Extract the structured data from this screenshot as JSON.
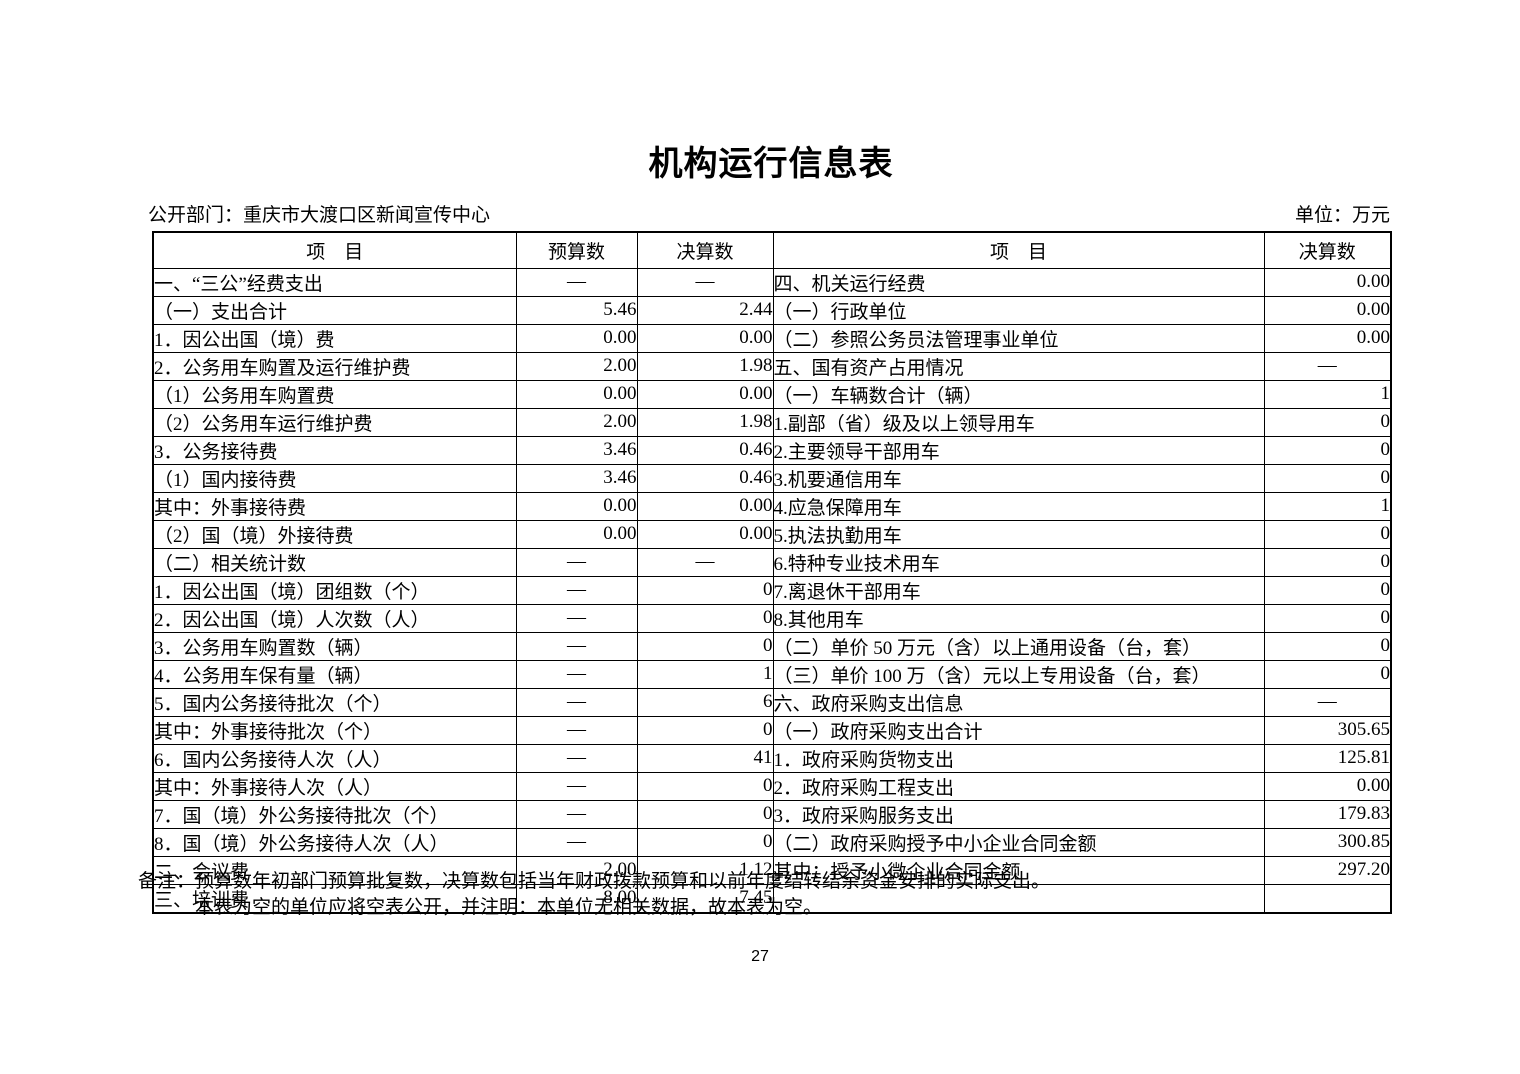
{
  "page": {
    "title": "机构运行信息表",
    "department_label": "公开部门：重庆市大渡口区新闻宣传中心",
    "unit_label": "单位：万元",
    "page_number": "27"
  },
  "table": {
    "headers": {
      "item_left": "项　目",
      "budget": "预算数",
      "final_left": "决算数",
      "item_right": "项　目",
      "final_right": "决算数"
    },
    "rows": [
      {
        "l": "一、“三公”经费支出",
        "li": 0,
        "b": "—",
        "f": "—",
        "r": "四、机关运行经费",
        "ri": 1,
        "v": "0.00"
      },
      {
        "l": "（一）支出合计",
        "li": 1,
        "b": "5.46",
        "f": "2.44",
        "r": "（一）行政单位",
        "ri": 1,
        "v": "0.00"
      },
      {
        "l": "1．因公出国（境）费",
        "li": 2,
        "b": "0.00",
        "f": "0.00",
        "r": "（二）参照公务员法管理事业单位",
        "ri": 1,
        "v": "0.00"
      },
      {
        "l": "2．公务用车购置及运行维护费",
        "li": 2,
        "b": "2.00",
        "f": "1.98",
        "r": "五、国有资产占用情况",
        "ri": 1,
        "v": "—"
      },
      {
        "l": "（1）公务用车购置费",
        "li": 3,
        "b": "0.00",
        "f": "0.00",
        "r": "（一）车辆数合计（辆）",
        "ri": 1,
        "v": "1"
      },
      {
        "l": "（2）公务用车运行维护费",
        "li": 3,
        "b": "2.00",
        "f": "1.98",
        "r": "1.副部（省）级及以上领导用车",
        "ri": 2,
        "v": "0"
      },
      {
        "l": "3．公务接待费",
        "li": 2,
        "b": "3.46",
        "f": "0.46",
        "r": "2.主要领导干部用车",
        "ri": 2,
        "v": "0"
      },
      {
        "l": "（1）国内接待费",
        "li": 3,
        "b": "3.46",
        "f": "0.46",
        "r": "3.机要通信用车",
        "ri": 2,
        "v": "0"
      },
      {
        "l": "其中：外事接待费",
        "li": 6,
        "b": "0.00",
        "f": "0.00",
        "r": "4.应急保障用车",
        "ri": 2,
        "v": "1"
      },
      {
        "l": "（2）国（境）外接待费",
        "li": 3,
        "b": "0.00",
        "f": "0.00",
        "r": "5.执法执勤用车",
        "ri": 2,
        "v": "0"
      },
      {
        "l": "（二）相关统计数",
        "li": 1,
        "b": "—",
        "f": "—",
        "r": "6.特种专业技术用车",
        "ri": 2,
        "v": "0"
      },
      {
        "l": "1．因公出国（境）团组数（个）",
        "li": 2,
        "b": "—",
        "f": "0",
        "r": "7.离退休干部用车",
        "ri": 2,
        "v": "0"
      },
      {
        "l": "2．因公出国（境）人次数（人）",
        "li": 2,
        "b": "—",
        "f": "0",
        "r": "8.其他用车",
        "ri": 2,
        "v": "0"
      },
      {
        "l": "3．公务用车购置数（辆）",
        "li": 2,
        "b": "—",
        "f": "0",
        "r": "（二）单价 50 万元（含）以上通用设备（台，套）",
        "ri": 1,
        "v": "0"
      },
      {
        "l": "4．公务用车保有量（辆）",
        "li": 2,
        "b": "—",
        "f": "1",
        "r": "（三）单价 100 万（含）元以上专用设备（台，套）",
        "ri": 1,
        "v": "0"
      },
      {
        "l": "5．国内公务接待批次（个）",
        "li": 2,
        "b": "—",
        "f": "6",
        "r": "六、政府采购支出信息",
        "ri": 1,
        "v": "—"
      },
      {
        "l": "其中：外事接待批次（个）",
        "li": 4,
        "b": "—",
        "f": "0",
        "r": "（一）政府采购支出合计",
        "ri": 3,
        "v": "305.65"
      },
      {
        "l": "6．国内公务接待人次（人）",
        "li": 2,
        "b": "—",
        "f": "41",
        "r": "1．政府采购货物支出",
        "ri": 4,
        "v": "125.81"
      },
      {
        "l": "其中：外事接待人次（人）",
        "li": 4,
        "b": "—",
        "f": "0",
        "r": "2．政府采购工程支出",
        "ri": 4,
        "v": "0.00"
      },
      {
        "l": "7．国（境）外公务接待批次（个）",
        "li": 2,
        "b": "—",
        "f": "0",
        "r": "3．政府采购服务支出",
        "ri": 4,
        "v": "179.83"
      },
      {
        "l": "8．国（境）外公务接待人次（人）",
        "li": 2,
        "b": "—",
        "f": "0",
        "r": "（二）政府采购授予中小企业合同金额",
        "ri": 3,
        "v": "300.85"
      },
      {
        "l": "二、会议费",
        "li": 0,
        "b": "2.00",
        "f": "1.12",
        "r": "其中：授予小微企业合同金额",
        "ri": 5,
        "v": "297.20"
      },
      {
        "l": "三、培训费",
        "li": 0,
        "b": "8.00",
        "f": "7.45",
        "r": "",
        "ri": 0,
        "v": ""
      }
    ]
  },
  "notes": {
    "label": "备注：",
    "line1": "预算数年初部门预算批复数，决算数包括当年财政拨款预算和以前年度结转结余资金安排的实际支出。",
    "line2": "本表为空的单位应将空表公开，并注明：本单位无相关数据，故本表为空。"
  }
}
